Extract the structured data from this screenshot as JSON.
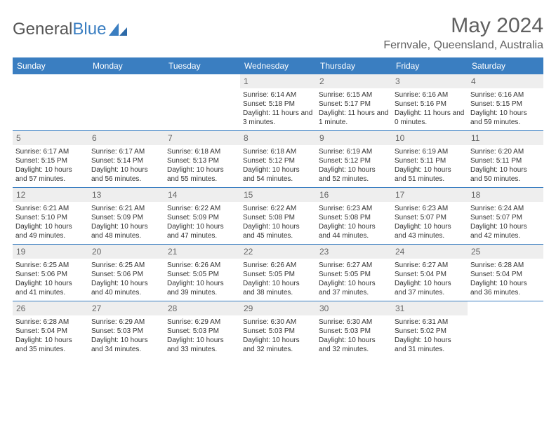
{
  "logo": {
    "text_general": "General",
    "text_blue": "Blue"
  },
  "title": "May 2024",
  "location": "Fernvale, Queensland, Australia",
  "colors": {
    "header_bg": "#3a7ec1",
    "daynum_bg": "#eeeeee",
    "text": "#333333",
    "title_text": "#606060"
  },
  "day_headers": [
    "Sunday",
    "Monday",
    "Tuesday",
    "Wednesday",
    "Thursday",
    "Friday",
    "Saturday"
  ],
  "weeks": [
    [
      {
        "day": "",
        "sunrise": "",
        "sunset": "",
        "daylight": ""
      },
      {
        "day": "",
        "sunrise": "",
        "sunset": "",
        "daylight": ""
      },
      {
        "day": "",
        "sunrise": "",
        "sunset": "",
        "daylight": ""
      },
      {
        "day": "1",
        "sunrise": "Sunrise: 6:14 AM",
        "sunset": "Sunset: 5:18 PM",
        "daylight": "Daylight: 11 hours and 3 minutes."
      },
      {
        "day": "2",
        "sunrise": "Sunrise: 6:15 AM",
        "sunset": "Sunset: 5:17 PM",
        "daylight": "Daylight: 11 hours and 1 minute."
      },
      {
        "day": "3",
        "sunrise": "Sunrise: 6:16 AM",
        "sunset": "Sunset: 5:16 PM",
        "daylight": "Daylight: 11 hours and 0 minutes."
      },
      {
        "day": "4",
        "sunrise": "Sunrise: 6:16 AM",
        "sunset": "Sunset: 5:15 PM",
        "daylight": "Daylight: 10 hours and 59 minutes."
      }
    ],
    [
      {
        "day": "5",
        "sunrise": "Sunrise: 6:17 AM",
        "sunset": "Sunset: 5:15 PM",
        "daylight": "Daylight: 10 hours and 57 minutes."
      },
      {
        "day": "6",
        "sunrise": "Sunrise: 6:17 AM",
        "sunset": "Sunset: 5:14 PM",
        "daylight": "Daylight: 10 hours and 56 minutes."
      },
      {
        "day": "7",
        "sunrise": "Sunrise: 6:18 AM",
        "sunset": "Sunset: 5:13 PM",
        "daylight": "Daylight: 10 hours and 55 minutes."
      },
      {
        "day": "8",
        "sunrise": "Sunrise: 6:18 AM",
        "sunset": "Sunset: 5:12 PM",
        "daylight": "Daylight: 10 hours and 54 minutes."
      },
      {
        "day": "9",
        "sunrise": "Sunrise: 6:19 AM",
        "sunset": "Sunset: 5:12 PM",
        "daylight": "Daylight: 10 hours and 52 minutes."
      },
      {
        "day": "10",
        "sunrise": "Sunrise: 6:19 AM",
        "sunset": "Sunset: 5:11 PM",
        "daylight": "Daylight: 10 hours and 51 minutes."
      },
      {
        "day": "11",
        "sunrise": "Sunrise: 6:20 AM",
        "sunset": "Sunset: 5:11 PM",
        "daylight": "Daylight: 10 hours and 50 minutes."
      }
    ],
    [
      {
        "day": "12",
        "sunrise": "Sunrise: 6:21 AM",
        "sunset": "Sunset: 5:10 PM",
        "daylight": "Daylight: 10 hours and 49 minutes."
      },
      {
        "day": "13",
        "sunrise": "Sunrise: 6:21 AM",
        "sunset": "Sunset: 5:09 PM",
        "daylight": "Daylight: 10 hours and 48 minutes."
      },
      {
        "day": "14",
        "sunrise": "Sunrise: 6:22 AM",
        "sunset": "Sunset: 5:09 PM",
        "daylight": "Daylight: 10 hours and 47 minutes."
      },
      {
        "day": "15",
        "sunrise": "Sunrise: 6:22 AM",
        "sunset": "Sunset: 5:08 PM",
        "daylight": "Daylight: 10 hours and 45 minutes."
      },
      {
        "day": "16",
        "sunrise": "Sunrise: 6:23 AM",
        "sunset": "Sunset: 5:08 PM",
        "daylight": "Daylight: 10 hours and 44 minutes."
      },
      {
        "day": "17",
        "sunrise": "Sunrise: 6:23 AM",
        "sunset": "Sunset: 5:07 PM",
        "daylight": "Daylight: 10 hours and 43 minutes."
      },
      {
        "day": "18",
        "sunrise": "Sunrise: 6:24 AM",
        "sunset": "Sunset: 5:07 PM",
        "daylight": "Daylight: 10 hours and 42 minutes."
      }
    ],
    [
      {
        "day": "19",
        "sunrise": "Sunrise: 6:25 AM",
        "sunset": "Sunset: 5:06 PM",
        "daylight": "Daylight: 10 hours and 41 minutes."
      },
      {
        "day": "20",
        "sunrise": "Sunrise: 6:25 AM",
        "sunset": "Sunset: 5:06 PM",
        "daylight": "Daylight: 10 hours and 40 minutes."
      },
      {
        "day": "21",
        "sunrise": "Sunrise: 6:26 AM",
        "sunset": "Sunset: 5:05 PM",
        "daylight": "Daylight: 10 hours and 39 minutes."
      },
      {
        "day": "22",
        "sunrise": "Sunrise: 6:26 AM",
        "sunset": "Sunset: 5:05 PM",
        "daylight": "Daylight: 10 hours and 38 minutes."
      },
      {
        "day": "23",
        "sunrise": "Sunrise: 6:27 AM",
        "sunset": "Sunset: 5:05 PM",
        "daylight": "Daylight: 10 hours and 37 minutes."
      },
      {
        "day": "24",
        "sunrise": "Sunrise: 6:27 AM",
        "sunset": "Sunset: 5:04 PM",
        "daylight": "Daylight: 10 hours and 37 minutes."
      },
      {
        "day": "25",
        "sunrise": "Sunrise: 6:28 AM",
        "sunset": "Sunset: 5:04 PM",
        "daylight": "Daylight: 10 hours and 36 minutes."
      }
    ],
    [
      {
        "day": "26",
        "sunrise": "Sunrise: 6:28 AM",
        "sunset": "Sunset: 5:04 PM",
        "daylight": "Daylight: 10 hours and 35 minutes."
      },
      {
        "day": "27",
        "sunrise": "Sunrise: 6:29 AM",
        "sunset": "Sunset: 5:03 PM",
        "daylight": "Daylight: 10 hours and 34 minutes."
      },
      {
        "day": "28",
        "sunrise": "Sunrise: 6:29 AM",
        "sunset": "Sunset: 5:03 PM",
        "daylight": "Daylight: 10 hours and 33 minutes."
      },
      {
        "day": "29",
        "sunrise": "Sunrise: 6:30 AM",
        "sunset": "Sunset: 5:03 PM",
        "daylight": "Daylight: 10 hours and 32 minutes."
      },
      {
        "day": "30",
        "sunrise": "Sunrise: 6:30 AM",
        "sunset": "Sunset: 5:03 PM",
        "daylight": "Daylight: 10 hours and 32 minutes."
      },
      {
        "day": "31",
        "sunrise": "Sunrise: 6:31 AM",
        "sunset": "Sunset: 5:02 PM",
        "daylight": "Daylight: 10 hours and 31 minutes."
      },
      {
        "day": "",
        "sunrise": "",
        "sunset": "",
        "daylight": ""
      }
    ]
  ]
}
